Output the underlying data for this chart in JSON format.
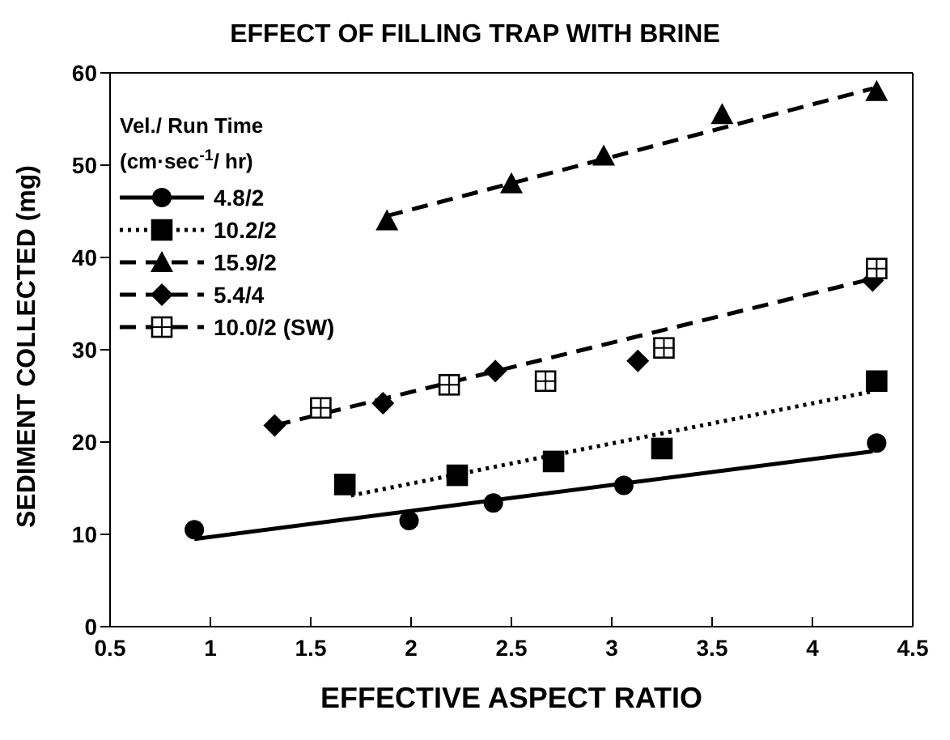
{
  "chart_data": {
    "type": "scatter",
    "title": "EFFECT OF FILLING TRAP WITH BRINE",
    "xlabel": "EFFECTIVE ASPECT RATIO",
    "ylabel": "SEDIMENT COLLECTED (mg)",
    "legend_title": "Vel./ Run Time\n(cm·sec$^{-1}$/ hr)",
    "legend": "top left",
    "xlim": [
      0.5,
      4.5
    ],
    "xticks": [
      0.5,
      1,
      1.5,
      2,
      2.5,
      3,
      3.5,
      4,
      4.5
    ],
    "ylim": [
      0,
      60
    ],
    "yticks": [
      0,
      10,
      20,
      30,
      40,
      50,
      60
    ],
    "series": [
      {
        "name": "4.8/2",
        "color": "#000000",
        "marker": "circle",
        "line_style": "solid",
        "x": [
          0.92,
          1.99,
          2.41,
          3.06,
          4.32
        ],
        "values": [
          10.5,
          11.5,
          13.4,
          15.3,
          19.9
        ]
      },
      {
        "name": "10.2/2",
        "color": "#000000",
        "marker": "square",
        "line_style": "dotted",
        "x": [
          1.67,
          2.23,
          2.71,
          3.25,
          4.32
        ],
        "values": [
          15.4,
          16.4,
          17.9,
          19.3,
          26.6
        ]
      },
      {
        "name": "15.9/2",
        "color": "#000000",
        "marker": "triangle",
        "line_style": "dashed",
        "x": [
          1.88,
          2.5,
          2.96,
          3.55,
          4.32
        ],
        "values": [
          44,
          48,
          51,
          55.5,
          58
        ]
      },
      {
        "name": "5.4/4",
        "color": "#000000",
        "marker": "diamond",
        "line_style": "dashed",
        "x": [
          1.32,
          1.86,
          2.42,
          3.13,
          4.3
        ],
        "values": [
          21.8,
          24.2,
          27.7,
          28.8,
          37.5
        ]
      },
      {
        "name": "10.0/2 (SW)",
        "color": "#ffffff",
        "marker": "square",
        "line_style": "dashed",
        "x": [
          1.55,
          2.19,
          2.67,
          3.26,
          4.32
        ],
        "values": [
          23.7,
          26.2,
          26.6,
          30.2,
          38.8
        ]
      },
      {
        "type": "line",
        "color": "#000000",
        "line_style": "solid",
        "x": [
          0.92,
          4.3
        ],
        "values": [
          9.5,
          19
        ]
      },
      {
        "type": "line",
        "color": "#000000",
        "line_style": "dotted",
        "x": [
          1.7,
          4.3
        ],
        "values": [
          14.2,
          25.5
        ]
      },
      {
        "type": "line",
        "color": "#000000",
        "line_style": "dashed",
        "x": [
          1.88,
          4.3
        ],
        "values": [
          44.5,
          58.3
        ]
      },
      {
        "type": "line",
        "color": "#000000",
        "line_style": "dashed",
        "x": [
          1.32,
          4.3
        ],
        "values": [
          21.8,
          37.7
        ]
      }
    ]
  }
}
